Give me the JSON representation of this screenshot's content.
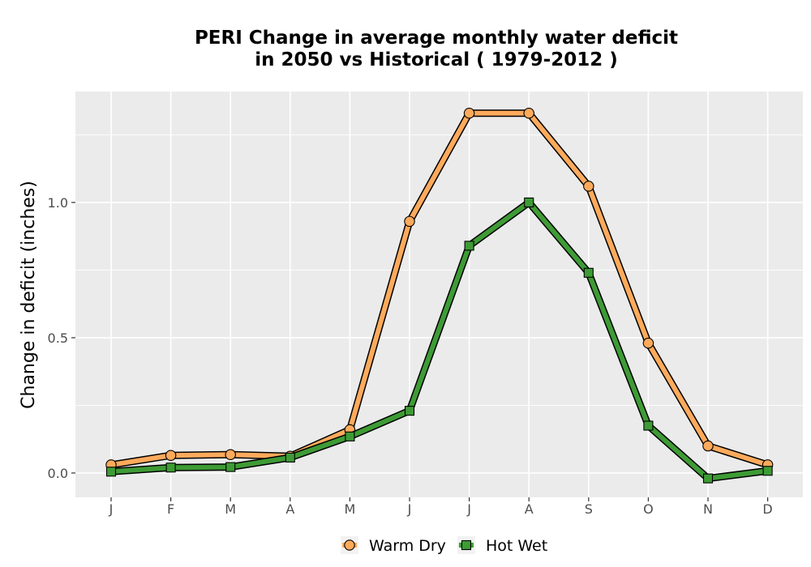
{
  "chart_data": {
    "type": "line",
    "title_lines": [
      "PERI  Change in average monthly water deficit",
      "in 2050 vs Historical ( 1979-2012 )"
    ],
    "xlabel": "",
    "ylabel": "Change in deficit (inches)",
    "categories": [
      "J",
      "F",
      "M",
      "A",
      "M",
      "J",
      "J",
      "A",
      "S",
      "O",
      "N",
      "D"
    ],
    "ylim": [
      -0.09,
      1.41
    ],
    "yticks": [
      0.0,
      0.5,
      1.0
    ],
    "ytick_labels": [
      "0.0",
      "0.5",
      "1.0"
    ],
    "grid": true,
    "legend_position": "bottom",
    "series": [
      {
        "name": "Warm Dry",
        "color": "#FDAA5C",
        "marker": "circle",
        "values": [
          0.03,
          0.065,
          0.068,
          0.062,
          0.16,
          0.93,
          1.33,
          1.33,
          1.06,
          0.48,
          0.1,
          0.03
        ]
      },
      {
        "name": "Hot Wet",
        "color": "#3E9B35",
        "marker": "square",
        "values": [
          0.005,
          0.02,
          0.022,
          0.057,
          0.135,
          0.23,
          0.84,
          1.0,
          0.74,
          0.175,
          -0.02,
          0.008
        ]
      }
    ]
  }
}
